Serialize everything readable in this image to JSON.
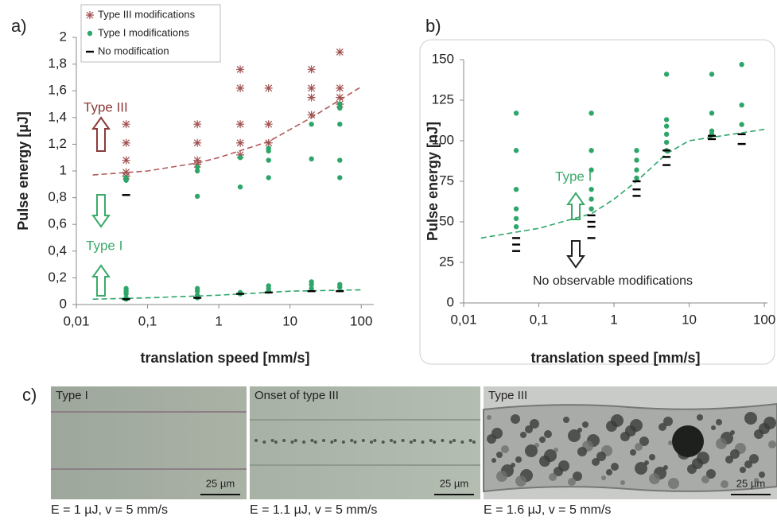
{
  "chart_data": [
    {
      "type": "scatter",
      "panel_label": "a)",
      "x_label": "translation speed [mm/s]",
      "y_label": "Pulse energy [µJ]",
      "log_x": true,
      "xlim": [
        0.01,
        150
      ],
      "ylim": [
        0,
        2
      ],
      "xticks": [
        {
          "value": 0.01,
          "label": "0,01"
        },
        {
          "value": 0.1,
          "label": "0,1"
        },
        1,
        10,
        100
      ],
      "yticks": [
        0,
        {
          "value": 0.2,
          "label": "0,2"
        },
        {
          "value": 0.4,
          "label": "0,4"
        },
        {
          "value": 0.6,
          "label": "0,6"
        },
        {
          "value": 0.8,
          "label": "0,8"
        },
        1,
        {
          "value": 1.2,
          "label": "1,2"
        },
        {
          "value": 1.4,
          "label": "1,4"
        },
        {
          "value": 1.6,
          "label": "1,6"
        },
        {
          "value": 1.8,
          "label": "1,8"
        },
        2
      ],
      "series": [
        {
          "name": "Type III modifications",
          "color": "#a0504f",
          "marker": "asterisk",
          "x": [
            0.05,
            0.05,
            0.05,
            0.05,
            0.05,
            0.5,
            0.5,
            0.5,
            0.5,
            2,
            2,
            2,
            2,
            2,
            5,
            5,
            5,
            20,
            20,
            20,
            20,
            50,
            50,
            50,
            50
          ],
          "values": [
            1.35,
            1.21,
            1.08,
            0.99,
            0.96,
            1.35,
            1.21,
            1.08,
            1.05,
            1.76,
            1.62,
            1.35,
            1.21,
            1.12,
            1.62,
            1.35,
            1.21,
            1.76,
            1.62,
            1.55,
            1.42,
            1.89,
            1.62,
            1.55,
            1.5
          ]
        },
        {
          "name": "Type I modifications",
          "color": "#2ea66a",
          "marker": "circle",
          "x": [
            0.05,
            0.05,
            0.05,
            0.05,
            0.05,
            0.05,
            0.05,
            0.5,
            0.5,
            0.5,
            0.5,
            0.5,
            0.5,
            0.5,
            2,
            2,
            2,
            2,
            5,
            5,
            5,
            5,
            5,
            5,
            5,
            20,
            20,
            20,
            20,
            20,
            50,
            50,
            50,
            50,
            50,
            50,
            50
          ],
          "values": [
            0.95,
            0.93,
            0.12,
            0.1,
            0.08,
            0.05,
            0.04,
            1.03,
            1.0,
            0.81,
            0.12,
            0.1,
            0.07,
            0.05,
            1.1,
            0.88,
            0.09,
            0.08,
            1.17,
            1.15,
            1.08,
            0.95,
            0.14,
            0.12,
            0.1,
            1.35,
            1.09,
            0.17,
            0.15,
            0.12,
            1.5,
            1.47,
            1.35,
            1.08,
            0.95,
            0.15,
            0.13
          ]
        },
        {
          "name": "No modification",
          "color": "#000000",
          "marker": "dash",
          "x": [
            0.05,
            0.05,
            0.5,
            2,
            5,
            20,
            50
          ],
          "values": [
            0.82,
            0.04,
            0.05,
            0.08,
            0.09,
            0.1,
            0.1
          ]
        }
      ],
      "fits": [
        {
          "color": "#b05a5a",
          "x": [
            0.017,
            0.1,
            0.5,
            1,
            5,
            20,
            100
          ],
          "values": [
            0.97,
            1.0,
            1.06,
            1.1,
            1.22,
            1.4,
            1.63
          ]
        },
        {
          "color": "#2ea66a",
          "x": [
            0.017,
            0.1,
            1,
            10,
            100
          ],
          "values": [
            0.04,
            0.05,
            0.07,
            0.1,
            0.11
          ]
        }
      ],
      "annotations": [
        "Type III",
        "Type I"
      ]
    },
    {
      "type": "scatter",
      "panel_label": "b)",
      "x_label": "translation speed [mm/s]",
      "y_label": "Pulse energy [nJ]",
      "log_x": true,
      "xlim": [
        0.01,
        110
      ],
      "ylim": [
        0,
        150
      ],
      "xticks": [
        {
          "value": 0.01,
          "label": "0,01"
        },
        {
          "value": 0.1,
          "label": "0,1"
        },
        1,
        10,
        100
      ],
      "yticks": [
        0,
        25,
        50,
        75,
        100,
        125,
        150
      ],
      "series": [
        {
          "color": "#2ea66a",
          "marker": "circle",
          "x": [
            0.05,
            0.05,
            0.05,
            0.05,
            0.05,
            0.05,
            0.5,
            0.5,
            0.5,
            0.5,
            0.5,
            0.5,
            2,
            2,
            2,
            2,
            5,
            5,
            5,
            5,
            5,
            5,
            20,
            20,
            20,
            20,
            50,
            50,
            50
          ],
          "values": [
            117,
            94,
            70,
            58,
            52,
            47,
            117,
            94,
            82,
            70,
            64,
            58,
            94,
            88,
            82,
            77,
            141,
            113,
            109,
            104,
            99,
            94,
            141,
            117,
            106,
            104,
            147,
            122,
            110
          ]
        },
        {
          "color": "#000000",
          "marker": "dash",
          "x": [
            0.05,
            0.05,
            0.05,
            0.5,
            0.5,
            0.5,
            0.5,
            2,
            2,
            2,
            5,
            5,
            5,
            20,
            20,
            50,
            50
          ],
          "values": [
            40,
            36,
            32,
            54,
            50,
            47,
            40,
            75,
            70,
            66,
            94,
            90,
            85,
            103,
            101,
            104,
            98
          ]
        }
      ],
      "fits": [
        {
          "color": "#2ea66a",
          "x": [
            0.017,
            0.1,
            0.5,
            1,
            2,
            5,
            10,
            100
          ],
          "values": [
            40,
            46,
            55,
            64,
            75,
            92,
            100,
            107
          ]
        }
      ],
      "annotations": [
        "Type I",
        "No observable modifications"
      ]
    }
  ],
  "panel_c": {
    "label": "c)",
    "images": [
      {
        "title": "Type I",
        "scale_bar": "25 µm",
        "caption": "E = 1 µJ, v = 5 mm/s"
      },
      {
        "title": "Onset of type III",
        "scale_bar": "25 µm",
        "caption": "E = 1.1 µJ, v = 5 mm/s"
      },
      {
        "title": "Type III",
        "scale_bar": "25 µm",
        "caption": "E = 1.6 µJ, v = 5 mm/s"
      }
    ]
  }
}
